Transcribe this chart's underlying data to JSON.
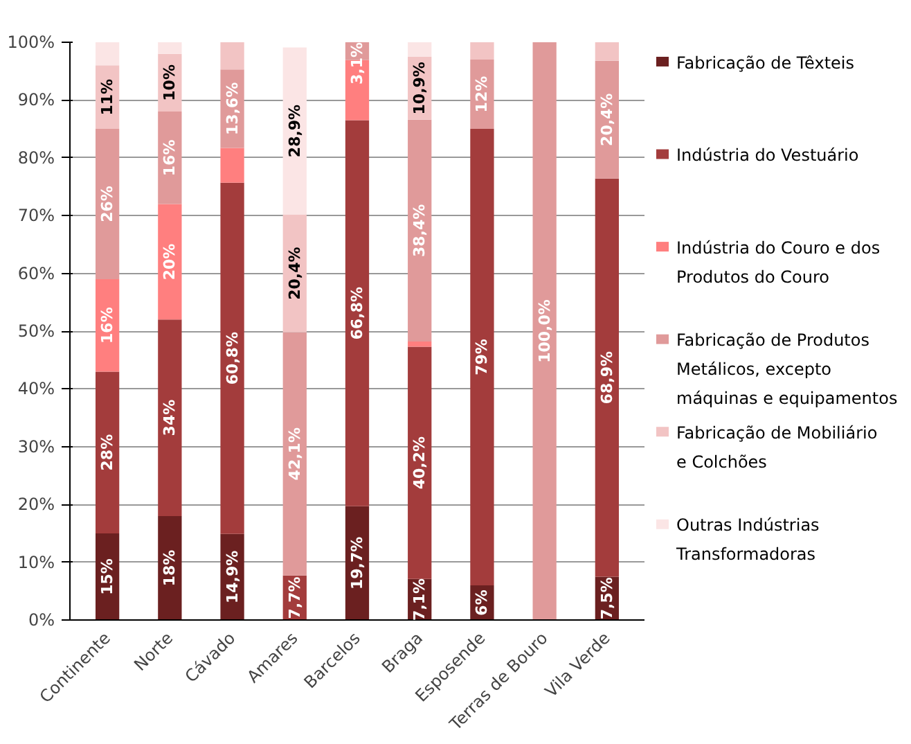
{
  "chart_data": {
    "type": "bar",
    "stacked": true,
    "categories": [
      "Continente",
      "Norte",
      "Cávado",
      "Amares",
      "Barcelos",
      "Braga",
      "Esposende",
      "Terras de Bouro",
      "Vila Verde"
    ],
    "ylim": [
      0,
      100
    ],
    "yticks": [
      {
        "value": 0,
        "label": "0%"
      },
      {
        "value": 10,
        "label": "10%"
      },
      {
        "value": 20,
        "label": "20%"
      },
      {
        "value": 30,
        "label": "30%"
      },
      {
        "value": 40,
        "label": "40%"
      },
      {
        "value": 50,
        "label": "50%"
      },
      {
        "value": 60,
        "label": "60%"
      },
      {
        "value": 70,
        "label": "70%"
      },
      {
        "value": 80,
        "label": "80%"
      },
      {
        "value": 90,
        "label": "90%"
      },
      {
        "value": 100,
        "label": "100%"
      }
    ],
    "grid": "y",
    "legend": "right",
    "series": [
      {
        "name": "Fabricação de Têxteis",
        "color": "#6b2020",
        "values": [
          15,
          18,
          14.9,
          null,
          19.7,
          7.1,
          6,
          null,
          7.5
        ],
        "value_labels": [
          "15%",
          "18%",
          "14,9%",
          null,
          "19,7%",
          "7,1%",
          "6%",
          null,
          "7,5%"
        ]
      },
      {
        "name": "Indústria do Vestuário",
        "color": "#a33c3c",
        "values": [
          28,
          34,
          60.8,
          7.7,
          66.8,
          40.2,
          79,
          null,
          68.9
        ],
        "value_labels": [
          "28%",
          "34%",
          "60,8%",
          "7,7%",
          "66,8%",
          "40,2%",
          "79%",
          null,
          "68,9%"
        ]
      },
      {
        "name": "Indústria do Couro e dos Produtos do Couro",
        "color": "#ff7f7f",
        "values": [
          16,
          20,
          6,
          null,
          10.4,
          0.9,
          null,
          null,
          null
        ],
        "value_labels": [
          "16%",
          "20%",
          null,
          null,
          null,
          null,
          null,
          null,
          null
        ]
      },
      {
        "name": "Fabricação de Produtos Metálicos, excepto máquinas e equipamentos",
        "color": "#e09a9a",
        "values": [
          26,
          16,
          13.6,
          42.1,
          3.1,
          38.4,
          12,
          100,
          20.4
        ],
        "value_labels": [
          "26%",
          "16%",
          "13,6%",
          "42,1%",
          "3,1%",
          "38,4%",
          "12%",
          "100,0%",
          "20,4%"
        ]
      },
      {
        "name": "Fabricação de Mobiliário e Colchões",
        "color": "#f2c4c4",
        "values": [
          11,
          10,
          4.7,
          20.4,
          null,
          10.9,
          3,
          null,
          3.2
        ],
        "value_labels": [
          "11%",
          "10%",
          null,
          "20,4%",
          null,
          "10,9%",
          null,
          null,
          null
        ]
      },
      {
        "name": "Outras Indústrias Transformadoras",
        "color": "#fbe5e5",
        "values": [
          4,
          2,
          null,
          28.9,
          null,
          2.5,
          null,
          null,
          null
        ],
        "value_labels": [
          null,
          null,
          null,
          "28,9%",
          null,
          null,
          null,
          null,
          null
        ]
      }
    ]
  }
}
